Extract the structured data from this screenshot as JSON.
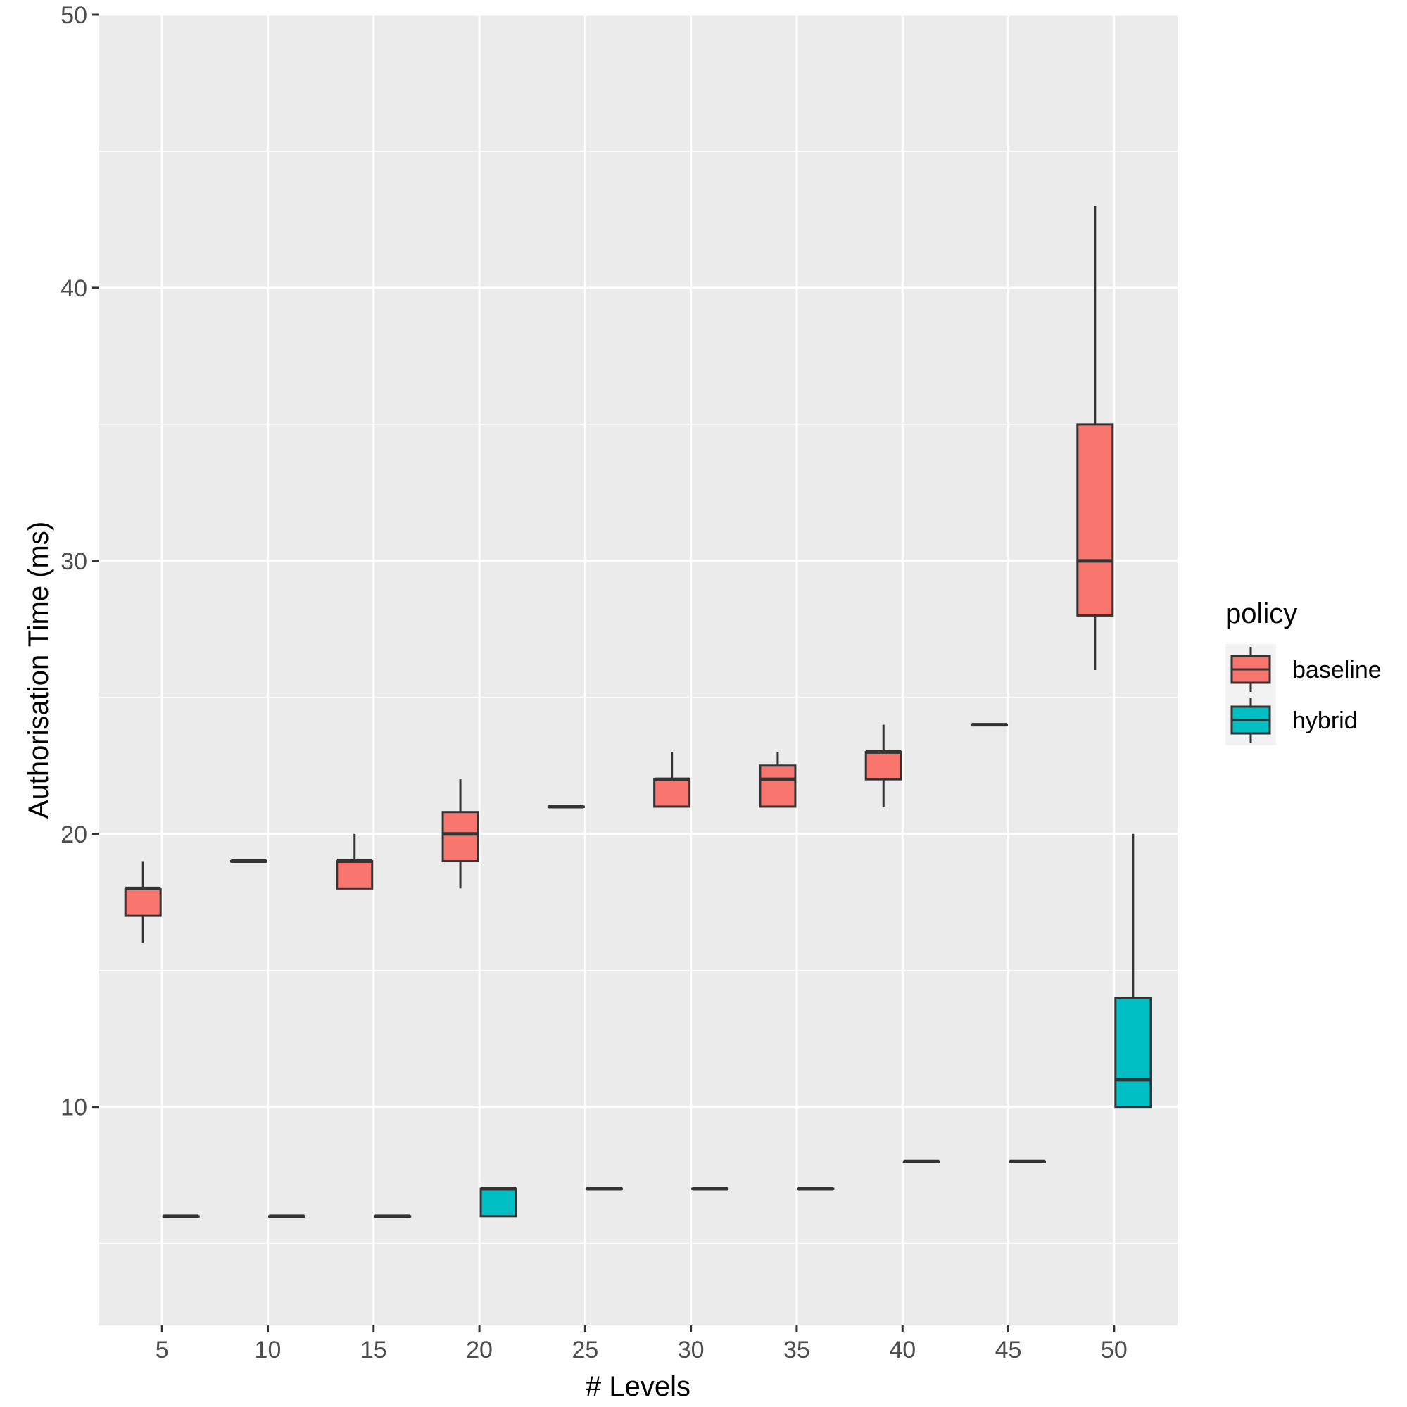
{
  "chart_data": {
    "type": "boxplot",
    "title": "",
    "xlabel": "# Levels",
    "ylabel": "Authorisation Time (ms)",
    "categories": [
      "5",
      "10",
      "15",
      "20",
      "25",
      "30",
      "35",
      "40",
      "45",
      "50"
    ],
    "x_values": [
      5,
      10,
      15,
      20,
      25,
      30,
      35,
      40,
      45,
      50
    ],
    "ylim": [
      2,
      50
    ],
    "y_ticks": [
      10,
      20,
      30,
      40,
      50
    ],
    "y_tick_labels": [
      "10",
      "20",
      "30",
      "40",
      "50"
    ],
    "grid": true,
    "legend": {
      "title": "policy",
      "position": "right",
      "entries": [
        {
          "label": "baseline",
          "color": "#F8766D"
        },
        {
          "label": "hybrid",
          "color": "#00BFC4"
        }
      ]
    },
    "series": [
      {
        "name": "baseline",
        "color": "#F8766D",
        "boxes": [
          {
            "x": 5,
            "lower": 16,
            "q1": 17,
            "median": 18,
            "q3": 18,
            "upper": 19
          },
          {
            "x": 10,
            "lower": 19,
            "q1": 19,
            "median": 19,
            "q3": 19,
            "upper": 19
          },
          {
            "x": 15,
            "lower": 18,
            "q1": 18,
            "median": 19,
            "q3": 19,
            "upper": 20
          },
          {
            "x": 20,
            "lower": 18,
            "q1": 19,
            "median": 20,
            "q3": 20.8,
            "upper": 22
          },
          {
            "x": 25,
            "lower": 21,
            "q1": 21,
            "median": 21,
            "q3": 21,
            "upper": 21
          },
          {
            "x": 30,
            "lower": 21,
            "q1": 21,
            "median": 22,
            "q3": 22,
            "upper": 23
          },
          {
            "x": 35,
            "lower": 21,
            "q1": 21,
            "median": 22,
            "q3": 22.5,
            "upper": 23
          },
          {
            "x": 40,
            "lower": 21,
            "q1": 22,
            "median": 23,
            "q3": 23,
            "upper": 24
          },
          {
            "x": 45,
            "lower": 24,
            "q1": 24,
            "median": 24,
            "q3": 24,
            "upper": 24
          },
          {
            "x": 50,
            "lower": 26,
            "q1": 28,
            "median": 30,
            "q3": 35,
            "upper": 43
          }
        ]
      },
      {
        "name": "hybrid",
        "color": "#00BFC4",
        "boxes": [
          {
            "x": 5,
            "lower": 6,
            "q1": 6,
            "median": 6,
            "q3": 6,
            "upper": 6
          },
          {
            "x": 10,
            "lower": 6,
            "q1": 6,
            "median": 6,
            "q3": 6,
            "upper": 6
          },
          {
            "x": 15,
            "lower": 6,
            "q1": 6,
            "median": 6,
            "q3": 6,
            "upper": 6
          },
          {
            "x": 20,
            "lower": 6,
            "q1": 6,
            "median": 7,
            "q3": 7,
            "upper": 7
          },
          {
            "x": 25,
            "lower": 7,
            "q1": 7,
            "median": 7,
            "q3": 7,
            "upper": 7
          },
          {
            "x": 30,
            "lower": 7,
            "q1": 7,
            "median": 7,
            "q3": 7,
            "upper": 7
          },
          {
            "x": 35,
            "lower": 7,
            "q1": 7,
            "median": 7,
            "q3": 7,
            "upper": 7
          },
          {
            "x": 40,
            "lower": 8,
            "q1": 8,
            "median": 8,
            "q3": 8,
            "upper": 8
          },
          {
            "x": 45,
            "lower": 8,
            "q1": 8,
            "median": 8,
            "q3": 8,
            "upper": 8
          },
          {
            "x": 50,
            "lower": 10,
            "q1": 10,
            "median": 11,
            "q3": 14,
            "upper": 20
          }
        ]
      }
    ]
  }
}
